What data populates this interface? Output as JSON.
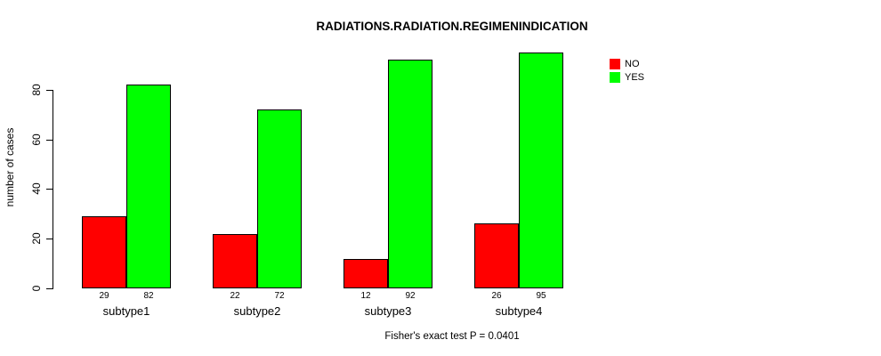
{
  "chart_data": {
    "type": "bar",
    "title": "RADIATIONS.RADIATION.REGIMENINDICATION",
    "xlabel": "",
    "ylabel": "number of cases",
    "categories": [
      "subtype1",
      "subtype2",
      "subtype3",
      "subtype4"
    ],
    "series": [
      {
        "name": "NO",
        "color": "#ff0000",
        "values": [
          29,
          22,
          12,
          26
        ]
      },
      {
        "name": "YES",
        "color": "#00ff00",
        "values": [
          82,
          72,
          92,
          95
        ]
      }
    ],
    "yticks": [
      0,
      20,
      40,
      60,
      80
    ],
    "ylim": [
      0,
      95
    ],
    "grid": false,
    "legend_position": "top-right",
    "values_shown_under_bars": true,
    "annotation": "Fisher's exact test P = 0.0401"
  }
}
